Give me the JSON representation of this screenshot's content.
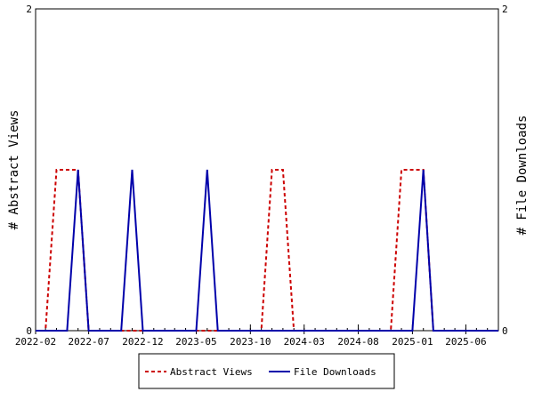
{
  "chart_data": {
    "type": "line",
    "title": "",
    "ylabel_left": "# Abstract Views",
    "ylabel_right": "# File Downloads",
    "ylim": [
      0,
      2
    ],
    "y_ticks": [
      "0",
      "2"
    ],
    "x_range": [
      "2022-02-01",
      "2025-09-01"
    ],
    "x_ticks": [
      "2022-02",
      "2022-07",
      "2022-12",
      "2023-05",
      "2023-10",
      "2024-03",
      "2024-08",
      "2025-01",
      "2025-06"
    ],
    "legend_position": "bottom",
    "series": [
      {
        "name": "Abstract Views",
        "color": "#cc0000",
        "style": "dashed",
        "axis": "left",
        "points": [
          [
            "2022-02-01",
            0
          ],
          [
            "2022-03-01",
            0
          ],
          [
            "2022-04-01",
            1
          ],
          [
            "2022-05-01",
            1
          ],
          [
            "2022-06-01",
            1
          ],
          [
            "2022-07-01",
            0
          ],
          [
            "2022-08-01",
            0
          ],
          [
            "2022-09-01",
            0
          ],
          [
            "2022-10-01",
            0
          ],
          [
            "2022-11-01",
            0
          ],
          [
            "2022-12-01",
            0
          ],
          [
            "2023-01-01",
            0
          ],
          [
            "2023-02-01",
            0
          ],
          [
            "2023-03-01",
            0
          ],
          [
            "2023-04-01",
            0
          ],
          [
            "2023-05-01",
            0
          ],
          [
            "2023-06-01",
            0
          ],
          [
            "2023-07-01",
            0
          ],
          [
            "2023-08-01",
            0
          ],
          [
            "2023-09-01",
            0
          ],
          [
            "2023-10-01",
            0
          ],
          [
            "2023-11-01",
            0
          ],
          [
            "2023-12-01",
            1
          ],
          [
            "2024-01-01",
            1
          ],
          [
            "2024-02-01",
            0
          ],
          [
            "2024-03-01",
            0
          ],
          [
            "2024-04-01",
            0
          ],
          [
            "2024-05-01",
            0
          ],
          [
            "2024-06-01",
            0
          ],
          [
            "2024-07-01",
            0
          ],
          [
            "2024-08-01",
            0
          ],
          [
            "2024-09-01",
            0
          ],
          [
            "2024-10-01",
            0
          ],
          [
            "2024-11-01",
            0
          ],
          [
            "2024-12-01",
            1
          ],
          [
            "2025-01-01",
            1
          ],
          [
            "2025-02-01",
            1
          ],
          [
            "2025-03-01",
            0
          ],
          [
            "2025-04-01",
            0
          ],
          [
            "2025-05-01",
            0
          ],
          [
            "2025-06-01",
            0
          ],
          [
            "2025-07-01",
            0
          ],
          [
            "2025-08-01",
            0
          ],
          [
            "2025-09-01",
            0
          ]
        ]
      },
      {
        "name": "File Downloads",
        "color": "#0000aa",
        "style": "solid",
        "axis": "right",
        "points": [
          [
            "2022-02-01",
            0
          ],
          [
            "2022-03-01",
            0
          ],
          [
            "2022-04-01",
            0
          ],
          [
            "2022-05-01",
            0
          ],
          [
            "2022-06-01",
            1
          ],
          [
            "2022-07-01",
            0
          ],
          [
            "2022-08-01",
            0
          ],
          [
            "2022-09-01",
            0
          ],
          [
            "2022-10-01",
            0
          ],
          [
            "2022-11-01",
            1
          ],
          [
            "2022-12-01",
            0
          ],
          [
            "2023-01-01",
            0
          ],
          [
            "2023-02-01",
            0
          ],
          [
            "2023-03-01",
            0
          ],
          [
            "2023-04-01",
            0
          ],
          [
            "2023-05-01",
            0
          ],
          [
            "2023-06-01",
            1
          ],
          [
            "2023-07-01",
            0
          ],
          [
            "2023-08-01",
            0
          ],
          [
            "2023-09-01",
            0
          ],
          [
            "2023-10-01",
            0
          ],
          [
            "2023-11-01",
            0
          ],
          [
            "2023-12-01",
            0
          ],
          [
            "2024-01-01",
            0
          ],
          [
            "2024-02-01",
            0
          ],
          [
            "2024-03-01",
            0
          ],
          [
            "2024-04-01",
            0
          ],
          [
            "2024-05-01",
            0
          ],
          [
            "2024-06-01",
            0
          ],
          [
            "2024-07-01",
            0
          ],
          [
            "2024-08-01",
            0
          ],
          [
            "2024-09-01",
            0
          ],
          [
            "2024-10-01",
            0
          ],
          [
            "2024-11-01",
            0
          ],
          [
            "2024-12-01",
            0
          ],
          [
            "2025-01-01",
            0
          ],
          [
            "2025-02-01",
            1
          ],
          [
            "2025-03-01",
            0
          ],
          [
            "2025-04-01",
            0
          ],
          [
            "2025-05-01",
            0
          ],
          [
            "2025-06-01",
            0
          ],
          [
            "2025-07-01",
            0
          ],
          [
            "2025-08-01",
            0
          ],
          [
            "2025-09-01",
            0
          ]
        ]
      }
    ]
  }
}
